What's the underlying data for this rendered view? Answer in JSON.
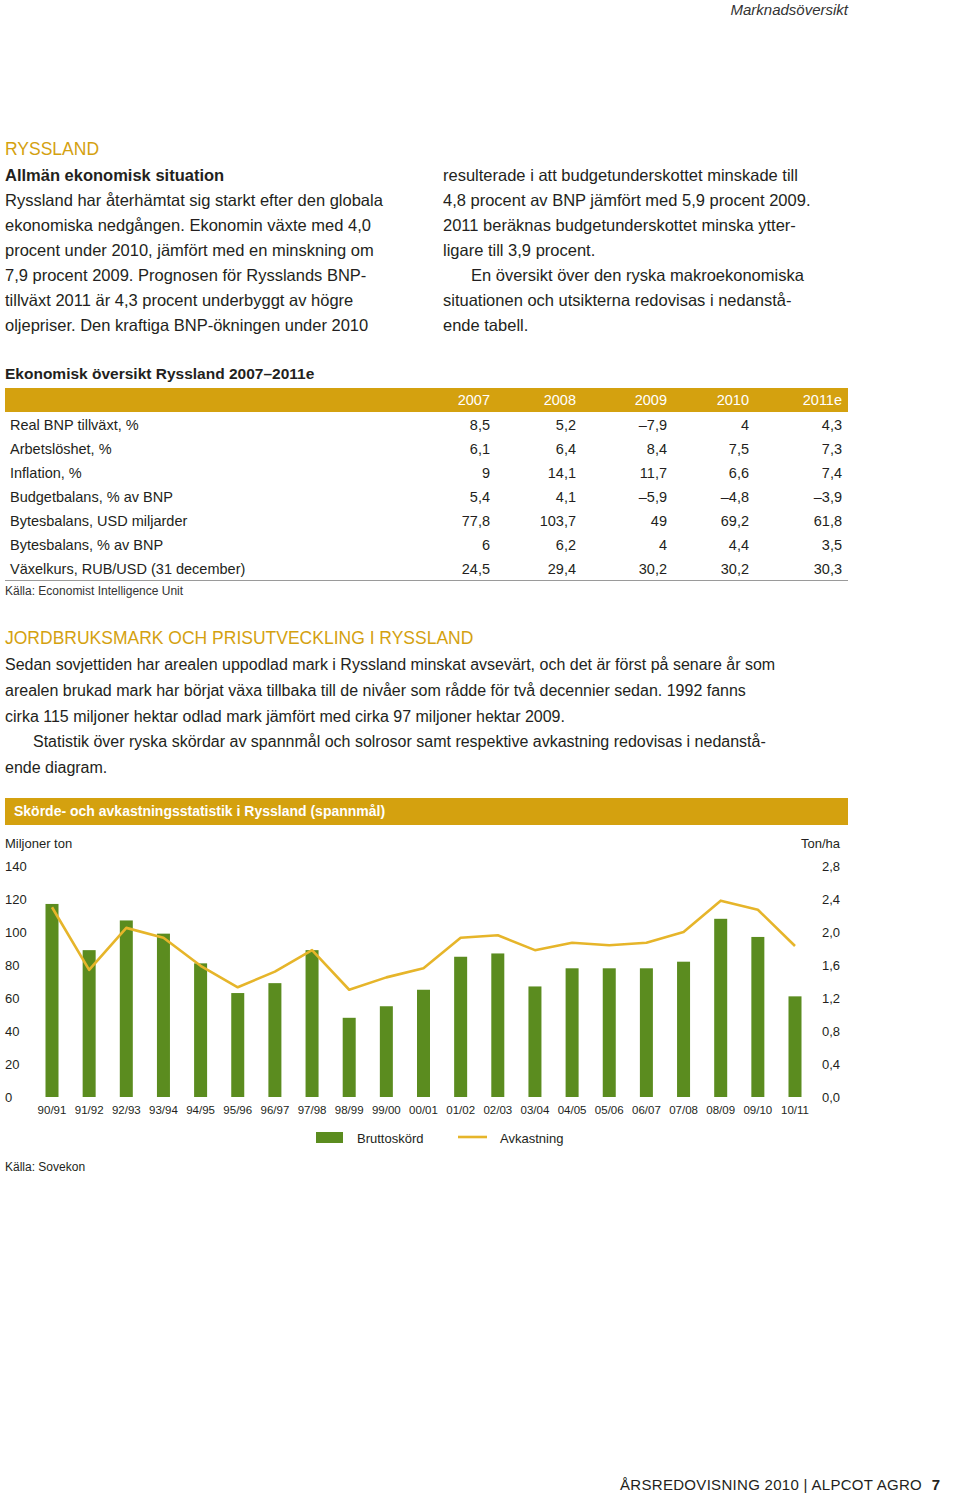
{
  "header": {
    "section": "Marknadsöversikt"
  },
  "intro": {
    "heading": "RYSSLAND",
    "subheading": "Allmän ekonomisk situation",
    "columns": [
      [
        [
          "Ryssland har återhämtat sig starkt efter den globala",
          "ekonomiska nedgången. Ekonomin växte med 4,0",
          "procent under 2010, jämfört med en minskning om",
          "7,9 procent 2009. Prognosen för Rysslands BNP-",
          "tillväxt 2011 är 4,3 procent underbyggt av högre",
          "oljepriser. Den kraftiga BNP-ökningen under 2010"
        ]
      ],
      [
        [
          "resulterade i att budgetunderskottet minskade till",
          "4,8 procent av BNP jämfört med 5,9 procent 2009.",
          "2011 beräknas budgetunderskottet minska ytter-",
          "ligare till 3,9 procent."
        ],
        [
          "En översikt över den ryska makroekonomiska",
          "situationen och utsikterna redovisas i nedanstå-",
          "ende tabell."
        ]
      ]
    ]
  },
  "table": {
    "title": "Ekonomisk översikt Ryssland 2007–2011e",
    "columns": [
      "2007",
      "2008",
      "2009",
      "2010",
      "2011e"
    ],
    "rows": [
      {
        "label": "Real BNP tillväxt, %",
        "cells": [
          "8,5",
          "5,2",
          "–7,9",
          "4",
          "4,3"
        ]
      },
      {
        "label": "Arbetslöshet, %",
        "cells": [
          "6,1",
          "6,4",
          "8,4",
          "7,5",
          "7,3"
        ]
      },
      {
        "label": "Inflation, %",
        "cells": [
          "9",
          "14,1",
          "11,7",
          "6,6",
          "7,4"
        ]
      },
      {
        "label": "Budgetbalans, % av BNP",
        "cells": [
          "5,4",
          "4,1",
          "–5,9",
          "–4,8",
          "–3,9"
        ]
      },
      {
        "label": "Bytesbalans, USD miljarder",
        "cells": [
          "77,8",
          "103,7",
          "49",
          "69,2",
          "61,8"
        ]
      },
      {
        "label": "Bytesbalans, % av BNP",
        "cells": [
          "6",
          "6,2",
          "4",
          "4,4",
          "3,5"
        ]
      },
      {
        "label": "Växelkurs, RUB/USD (31 december)",
        "cells": [
          "24,5",
          "29,4",
          "30,2",
          "30,2",
          "30,3"
        ]
      }
    ],
    "source": "Källa: Economist Intelligence Unit"
  },
  "section": {
    "heading": "JORDBRUKSMARK OCH PRISUTVECKLING I RYSSLAND",
    "paragraphs": [
      [
        "Sedan sovjettiden har arealen uppodlad mark i Ryssland minskat avsevärt, och det är först på senare år som",
        "arealen brukad mark har börjat växa tillbaka till de nivåer som rådde för två decennier sedan. 1992 fanns",
        "cirka 115 miljoner hektar odlad mark jämfört med cirka 97 miljoner hektar 2009."
      ],
      [
        "Statistik över ryska skördar av spannmål och solrosor samt respektive avkastning redovisas i nedanstå-",
        "ende diagram."
      ]
    ]
  },
  "chart_data": {
    "type": "bar",
    "title": "Skörde- och avkastningsstatistik i Ryssland (spannmål)",
    "y_label": "Miljoner ton",
    "y2_label": "Ton/ha",
    "source": "Källa: Sovekon",
    "categories": [
      "90/91",
      "91/92",
      "92/93",
      "93/94",
      "94/95",
      "95/96",
      "96/97",
      "97/98",
      "98/99",
      "99/00",
      "00/01",
      "01/02",
      "02/03",
      "03/04",
      "04/05",
      "05/06",
      "06/07",
      "07/08",
      "08/09",
      "09/10",
      "10/11"
    ],
    "series": [
      {
        "name": "Bruttoskörd",
        "type": "bar",
        "color": "#5b8c1f",
        "values": [
          117,
          89,
          107,
          99,
          81,
          63,
          69,
          89,
          48,
          55,
          65,
          85,
          87,
          67,
          78,
          78,
          78,
          82,
          108,
          97,
          61
        ]
      },
      {
        "name": "Avkastning",
        "type": "line",
        "color": "#e6b52a",
        "axis": "y2",
        "values": [
          2.3,
          1.54,
          2.05,
          1.93,
          1.59,
          1.33,
          1.52,
          1.78,
          1.3,
          1.45,
          1.56,
          1.93,
          1.96,
          1.78,
          1.87,
          1.84,
          1.87,
          2.0,
          2.38,
          2.27,
          1.83
        ]
      }
    ],
    "ylim": [
      0,
      140
    ],
    "yticks": [
      0,
      20,
      40,
      60,
      80,
      100,
      120,
      140
    ],
    "y2lim": [
      0,
      2.8
    ],
    "y2ticks": [
      {
        "value": 0,
        "label": "0,0"
      },
      {
        "value": 0.4,
        "label": "0,4"
      },
      {
        "value": 0.8,
        "label": "0,8"
      },
      {
        "value": 1.2,
        "label": "1,2"
      },
      {
        "value": 1.6,
        "label": "1,6"
      },
      {
        "value": 2.0,
        "label": "2,0"
      },
      {
        "value": 2.4,
        "label": "2,4"
      },
      {
        "value": 2.8,
        "label": "2,8"
      }
    ],
    "grid": false,
    "legend": "bottom"
  },
  "footer": {
    "text": "ÅRSREDOVISNING 2010 | ALPCOT AGRO",
    "page": "7"
  }
}
